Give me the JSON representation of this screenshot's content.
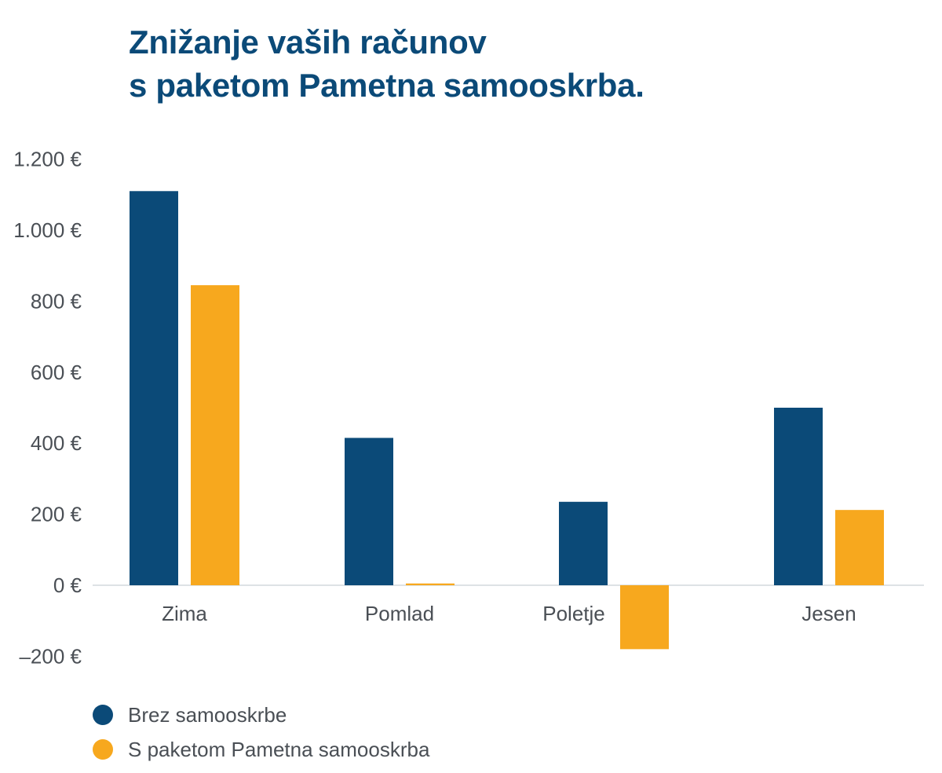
{
  "chart_data": {
    "type": "bar",
    "title": "Znižanje vaših računov s paketom Pametna samooskrba.",
    "title_lines": [
      "Znižanje vaših računov",
      "s paketom Pametna samooskrba."
    ],
    "xlabel": "",
    "ylabel": "",
    "categories": [
      "Zima",
      "Pomlad",
      "Poletje",
      "Jesen"
    ],
    "series": [
      {
        "name": "Brez samooskrbe",
        "color": "#0b4a78",
        "values": [
          1110,
          415,
          235,
          500
        ]
      },
      {
        "name": "S paketom Pametna samooskrba",
        "color": "#f7a81e",
        "values": [
          845,
          5,
          -180,
          212
        ]
      }
    ],
    "ylim": [
      -200,
      1200
    ],
    "yticks": [
      1200,
      1000,
      800,
      600,
      400,
      200,
      0,
      -200
    ],
    "ytick_labels": [
      "1.200 €",
      "1.000 €",
      "800 €",
      "600 €",
      "400 €",
      "200 €",
      "0 €",
      "–200 €"
    ],
    "grid": false,
    "legend_position": "bottom-left",
    "baseline_color": "#dde2e5",
    "text_color": "#4a4f55",
    "title_color": "#0b4a78"
  }
}
